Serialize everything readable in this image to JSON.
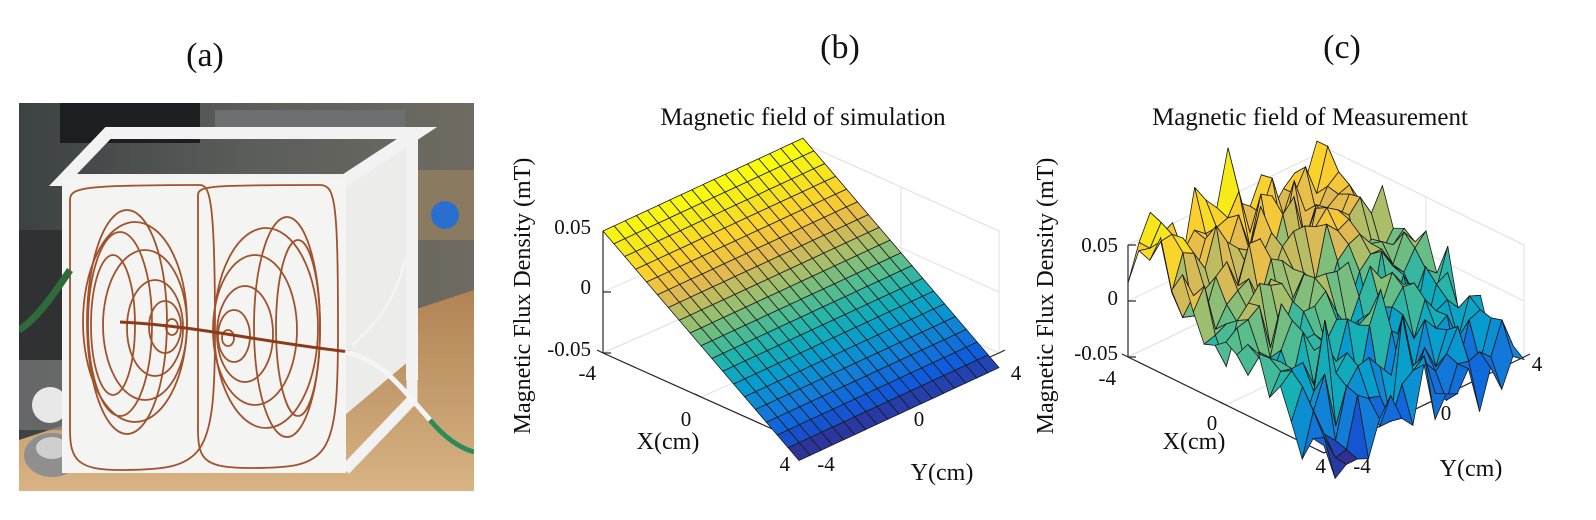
{
  "panel_labels": [
    "(a)",
    "(b)",
    "(c)"
  ],
  "colors": {
    "edge": "#1a1a1a",
    "axis": "#262626",
    "grid": "#e2e2e2",
    "pane": "#ffffff"
  },
  "chart_data": [
    {
      "type": "surface3d",
      "title": "Magnetic field of simulation",
      "xlabel": "X(cm)",
      "ylabel": "Y(cm)",
      "zlabel": "Magnetic Flux Density (mT)",
      "xlim": [
        -4,
        4
      ],
      "ylim": [
        -4,
        4
      ],
      "zlim": [
        -0.05,
        0.05
      ],
      "xticks": [
        "-4",
        "0",
        "4"
      ],
      "yticks": [
        "-4",
        "0",
        "4"
      ],
      "zticks": [
        "0.05",
        "0",
        "-0.05"
      ],
      "grid_size": [
        18,
        18
      ],
      "model": "planar gradient: z ≈ 0.05 at X=-4 decreasing linearly to about -0.065 at X=4; nearly constant along Y"
    },
    {
      "type": "surface3d",
      "title": "Magnetic field of Measurement",
      "xlabel": "X(cm)",
      "ylabel": "Y(cm)",
      "zlabel": "Magnetic Flux Density (mT)",
      "xlim": [
        -4,
        4
      ],
      "ylim": [
        -4,
        4
      ],
      "zlim": [
        -0.05,
        0.05
      ],
      "xticks": [
        "-4",
        "0",
        "4"
      ],
      "yticks": [
        "-4",
        "0",
        "4"
      ],
      "zticks": [
        "0.05",
        "0",
        "-0.05"
      ],
      "grid_size": [
        18,
        18
      ],
      "model": "noisy measured field with the same overall gradient as the simulation plus random spikes of roughly ±0.03"
    }
  ],
  "photo": {
    "description_name": "coil-apparatus-photo",
    "wire_color": "#a0522d",
    "panel_color": "#f4f4f2",
    "bench_color": "#c9a675"
  }
}
